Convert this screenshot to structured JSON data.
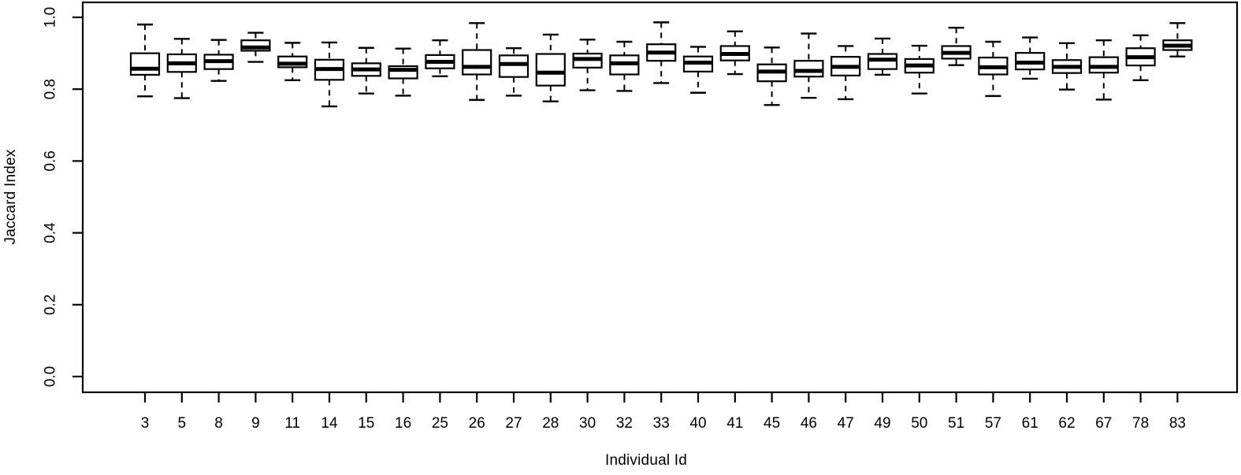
{
  "chart_data": {
    "type": "boxplot",
    "title": "",
    "xlabel": "Individual Id",
    "ylabel": "Jaccard Index",
    "ylim": [
      0.0,
      1.0
    ],
    "yticks": [
      0.0,
      0.2,
      0.4,
      0.6,
      0.8,
      1.0
    ],
    "grid": false,
    "legend": "none",
    "axis_color": "#000000",
    "box_fill": "#ffffff",
    "categories": [
      "3",
      "5",
      "8",
      "9",
      "11",
      "14",
      "15",
      "16",
      "25",
      "26",
      "27",
      "28",
      "30",
      "32",
      "33",
      "40",
      "41",
      "45",
      "46",
      "47",
      "49",
      "50",
      "51",
      "57",
      "61",
      "62",
      "67",
      "78",
      "83"
    ],
    "series": [
      {
        "id": "3",
        "whisker_low": 0.78,
        "q1": 0.84,
        "median": 0.857,
        "q3": 0.9,
        "whisker_high": 0.98
      },
      {
        "id": "5",
        "whisker_low": 0.775,
        "q1": 0.848,
        "median": 0.872,
        "q3": 0.897,
        "whisker_high": 0.94
      },
      {
        "id": "8",
        "whisker_low": 0.823,
        "q1": 0.856,
        "median": 0.878,
        "q3": 0.896,
        "whisker_high": 0.937
      },
      {
        "id": "9",
        "whisker_low": 0.876,
        "q1": 0.907,
        "median": 0.916,
        "q3": 0.936,
        "whisker_high": 0.957
      },
      {
        "id": "11",
        "whisker_low": 0.825,
        "q1": 0.861,
        "median": 0.871,
        "q3": 0.891,
        "whisker_high": 0.929
      },
      {
        "id": "14",
        "whisker_low": 0.752,
        "q1": 0.826,
        "median": 0.856,
        "q3": 0.882,
        "whisker_high": 0.93
      },
      {
        "id": "15",
        "whisker_low": 0.788,
        "q1": 0.837,
        "median": 0.855,
        "q3": 0.872,
        "whisker_high": 0.915
      },
      {
        "id": "16",
        "whisker_low": 0.782,
        "q1": 0.83,
        "median": 0.854,
        "q3": 0.864,
        "whisker_high": 0.913
      },
      {
        "id": "25",
        "whisker_low": 0.836,
        "q1": 0.858,
        "median": 0.876,
        "q3": 0.895,
        "whisker_high": 0.936
      },
      {
        "id": "26",
        "whisker_low": 0.77,
        "q1": 0.841,
        "median": 0.862,
        "q3": 0.909,
        "whisker_high": 0.984
      },
      {
        "id": "27",
        "whisker_low": 0.782,
        "q1": 0.834,
        "median": 0.87,
        "q3": 0.894,
        "whisker_high": 0.914
      },
      {
        "id": "28",
        "whisker_low": 0.766,
        "q1": 0.81,
        "median": 0.846,
        "q3": 0.898,
        "whisker_high": 0.952
      },
      {
        "id": "30",
        "whisker_low": 0.797,
        "q1": 0.86,
        "median": 0.884,
        "q3": 0.899,
        "whisker_high": 0.938
      },
      {
        "id": "32",
        "whisker_low": 0.795,
        "q1": 0.841,
        "median": 0.872,
        "q3": 0.894,
        "whisker_high": 0.932
      },
      {
        "id": "33",
        "whisker_low": 0.817,
        "q1": 0.879,
        "median": 0.902,
        "q3": 0.925,
        "whisker_high": 0.986
      },
      {
        "id": "40",
        "whisker_low": 0.79,
        "q1": 0.849,
        "median": 0.874,
        "q3": 0.891,
        "whisker_high": 0.918
      },
      {
        "id": "41",
        "whisker_low": 0.842,
        "q1": 0.88,
        "median": 0.898,
        "q3": 0.92,
        "whisker_high": 0.961
      },
      {
        "id": "45",
        "whisker_low": 0.756,
        "q1": 0.822,
        "median": 0.849,
        "q3": 0.869,
        "whisker_high": 0.916
      },
      {
        "id": "46",
        "whisker_low": 0.776,
        "q1": 0.835,
        "median": 0.851,
        "q3": 0.879,
        "whisker_high": 0.955
      },
      {
        "id": "47",
        "whisker_low": 0.772,
        "q1": 0.838,
        "median": 0.862,
        "q3": 0.89,
        "whisker_high": 0.92
      },
      {
        "id": "49",
        "whisker_low": 0.84,
        "q1": 0.856,
        "median": 0.882,
        "q3": 0.898,
        "whisker_high": 0.941
      },
      {
        "id": "50",
        "whisker_low": 0.788,
        "q1": 0.846,
        "median": 0.866,
        "q3": 0.884,
        "whisker_high": 0.921
      },
      {
        "id": "51",
        "whisker_low": 0.867,
        "q1": 0.885,
        "median": 0.901,
        "q3": 0.92,
        "whisker_high": 0.971
      },
      {
        "id": "57",
        "whisker_low": 0.781,
        "q1": 0.841,
        "median": 0.861,
        "q3": 0.888,
        "whisker_high": 0.932
      },
      {
        "id": "61",
        "whisker_low": 0.829,
        "q1": 0.855,
        "median": 0.874,
        "q3": 0.901,
        "whisker_high": 0.944
      },
      {
        "id": "62",
        "whisker_low": 0.799,
        "q1": 0.845,
        "median": 0.862,
        "q3": 0.881,
        "whisker_high": 0.928
      },
      {
        "id": "67",
        "whisker_low": 0.771,
        "q1": 0.846,
        "median": 0.862,
        "q3": 0.889,
        "whisker_high": 0.936
      },
      {
        "id": "78",
        "whisker_low": 0.825,
        "q1": 0.866,
        "median": 0.889,
        "q3": 0.914,
        "whisker_high": 0.95
      },
      {
        "id": "83",
        "whisker_low": 0.891,
        "q1": 0.909,
        "median": 0.921,
        "q3": 0.936,
        "whisker_high": 0.984
      }
    ]
  }
}
